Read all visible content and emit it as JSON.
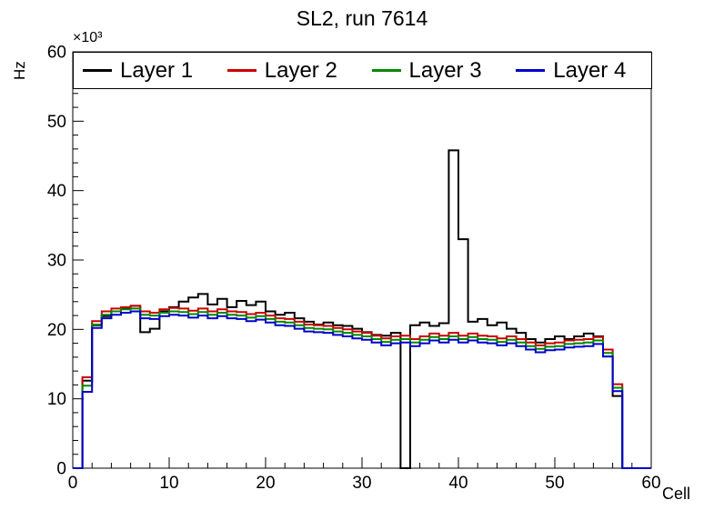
{
  "chart_data": {
    "type": "line",
    "style": "step-histogram",
    "title": "SL2, run 7614",
    "xlabel": "Cell",
    "ylabel": "Hz",
    "y_multiplier_label": "×10³",
    "xlim": [
      0,
      60
    ],
    "ylim": [
      0,
      60
    ],
    "xticks": [
      0,
      10,
      20,
      30,
      40,
      50,
      60
    ],
    "yticks": [
      0,
      10,
      20,
      30,
      40,
      50,
      60
    ],
    "minor_tick_step": 2,
    "bin_start": 0,
    "bin_width": 1,
    "grid": false,
    "legend_position": "top",
    "value_units": "kHz (axis shows Hz × 10^3)",
    "series": [
      {
        "name": "Layer 1",
        "color": "#000000",
        "values": [
          0,
          12.6,
          20.6,
          21.9,
          22.6,
          23.1,
          23.4,
          19.6,
          20.1,
          22.6,
          23.2,
          24.0,
          24.6,
          25.1,
          23.6,
          24.4,
          23.2,
          24.1,
          23.5,
          24.0,
          22.6,
          22.1,
          22.4,
          21.6,
          21.1,
          20.7,
          21.0,
          20.6,
          20.5,
          20.1,
          19.6,
          19.2,
          19.1,
          19.5,
          0,
          20.6,
          21.0,
          20.5,
          20.9,
          45.8,
          33.0,
          21.1,
          21.5,
          20.6,
          21.0,
          20.1,
          19.5,
          18.6,
          18.1,
          18.6,
          19.0,
          18.6,
          19.0,
          19.4,
          19.0,
          16.1,
          10.4,
          0,
          0,
          0
        ]
      },
      {
        "name": "Layer 2",
        "color": "#cc0000",
        "values": [
          0,
          13.1,
          21.2,
          22.6,
          23.0,
          23.2,
          23.4,
          22.6,
          22.4,
          22.9,
          23.1,
          23.0,
          22.7,
          23.0,
          22.6,
          22.9,
          22.6,
          22.5,
          22.2,
          22.4,
          22.0,
          21.6,
          21.5,
          21.1,
          20.7,
          20.6,
          20.5,
          20.2,
          20.0,
          19.7,
          19.5,
          19.1,
          18.7,
          19.0,
          19.1,
          18.6,
          19.0,
          19.4,
          19.1,
          19.5,
          19.1,
          19.4,
          19.1,
          19.0,
          18.7,
          19.0,
          18.6,
          18.1,
          17.7,
          18.0,
          18.1,
          18.4,
          18.5,
          18.6,
          18.9,
          17.1,
          12.1,
          0,
          0,
          0
        ]
      },
      {
        "name": "Layer 3",
        "color": "#008800",
        "values": [
          0,
          11.9,
          20.7,
          22.1,
          22.6,
          22.9,
          23.0,
          22.1,
          22.0,
          22.4,
          22.6,
          22.5,
          22.2,
          22.5,
          22.1,
          22.4,
          22.1,
          22.0,
          21.7,
          21.9,
          21.5,
          21.1,
          21.0,
          20.6,
          20.2,
          20.1,
          20.0,
          19.7,
          19.5,
          19.2,
          19.0,
          18.6,
          18.2,
          18.5,
          18.6,
          18.1,
          18.5,
          18.9,
          18.6,
          19.0,
          18.6,
          18.9,
          18.6,
          18.5,
          18.2,
          18.5,
          18.1,
          17.6,
          17.2,
          17.5,
          17.6,
          17.9,
          18.0,
          18.1,
          18.4,
          16.6,
          11.6,
          0,
          0,
          0
        ]
      },
      {
        "name": "Layer 4",
        "color": "#0000cc",
        "values": [
          0,
          11.0,
          20.2,
          21.6,
          22.1,
          22.4,
          22.6,
          21.6,
          21.5,
          21.9,
          22.1,
          22.0,
          21.7,
          22.0,
          21.6,
          21.9,
          21.6,
          21.5,
          21.2,
          21.4,
          21.0,
          20.6,
          20.5,
          20.1,
          19.7,
          19.6,
          19.5,
          19.2,
          19.0,
          18.7,
          18.5,
          18.1,
          17.7,
          18.0,
          18.1,
          17.6,
          18.0,
          18.4,
          18.1,
          18.5,
          18.1,
          18.4,
          18.1,
          18.0,
          17.7,
          18.0,
          17.6,
          17.1,
          16.7,
          17.0,
          17.1,
          17.4,
          17.5,
          17.6,
          17.9,
          16.1,
          11.1,
          0,
          0,
          0
        ]
      }
    ]
  }
}
